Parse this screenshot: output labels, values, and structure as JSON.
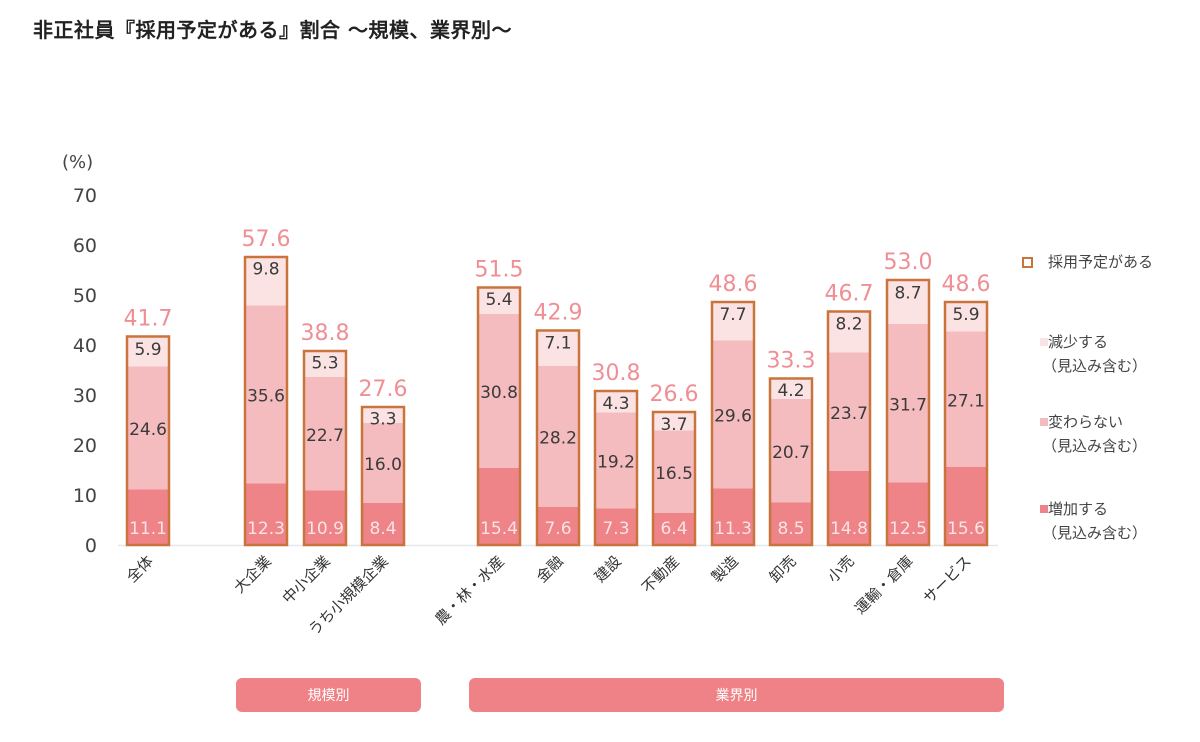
{
  "title": "非正社員『採用予定がある』割合 〜規模、業界別〜",
  "colors": {
    "increase": "#ee8388",
    "unchanged": "#f5bcc0",
    "decrease": "#fbe3e4",
    "outline": "#c8743c",
    "total_label": "#ef8f95",
    "band": "#ef8286",
    "axis_text": "#444444",
    "seg_text_dark": "#3a3a3a",
    "seg_text_light": "#fbe3e4"
  },
  "groups": [
    {
      "label": "規模別",
      "from": 1,
      "to": 3
    },
    {
      "label": "業界別",
      "from": 4,
      "to": 12
    }
  ],
  "legend": {
    "items": [
      {
        "key": "total",
        "lines": [
          "採用予定がある"
        ]
      },
      {
        "key": "decrease",
        "lines": [
          "減少する",
          "（見込み含む）"
        ]
      },
      {
        "key": "unchanged",
        "lines": [
          "変わらない",
          "（見込み含む）"
        ]
      },
      {
        "key": "increase",
        "lines": [
          "増加する",
          "（見込み含む）"
        ]
      }
    ]
  },
  "chart_data": {
    "type": "bar",
    "stacked": true,
    "title": "非正社員『採用予定がある』割合 〜規模、業界別〜",
    "xlabel": "",
    "ylabel": "(%)",
    "ylim": [
      0,
      70
    ],
    "yticks": [
      0,
      10,
      20,
      30,
      40,
      50,
      60,
      70
    ],
    "grid": false,
    "legend_position": "right",
    "categories": [
      "全体",
      "大企業",
      "中小企業",
      "うち小規模企業",
      "農・林・水産",
      "金融",
      "建設",
      "不動産",
      "製造",
      "卸売",
      "小売",
      "運輸・倉庫",
      "サービス"
    ],
    "series": [
      {
        "name": "増加する（見込み含む）",
        "key": "increase",
        "values": [
          11.1,
          12.3,
          10.9,
          8.4,
          15.4,
          7.6,
          7.3,
          6.4,
          11.3,
          8.5,
          14.8,
          12.5,
          15.6
        ]
      },
      {
        "name": "変わらない（見込み含む）",
        "key": "unchanged",
        "values": [
          24.6,
          35.6,
          22.7,
          16.0,
          30.8,
          28.2,
          19.2,
          16.5,
          29.6,
          20.7,
          23.7,
          31.7,
          27.1
        ]
      },
      {
        "name": "減少する（見込み含む）",
        "key": "decrease",
        "values": [
          5.9,
          9.8,
          5.3,
          3.3,
          5.4,
          7.1,
          4.3,
          3.7,
          7.7,
          4.2,
          8.2,
          8.7,
          5.9
        ]
      }
    ],
    "totals": {
      "name": "採用予定がある",
      "values": [
        41.7,
        57.6,
        38.8,
        27.6,
        51.5,
        42.9,
        30.8,
        26.6,
        48.6,
        33.3,
        46.7,
        53.0,
        48.6
      ]
    }
  }
}
